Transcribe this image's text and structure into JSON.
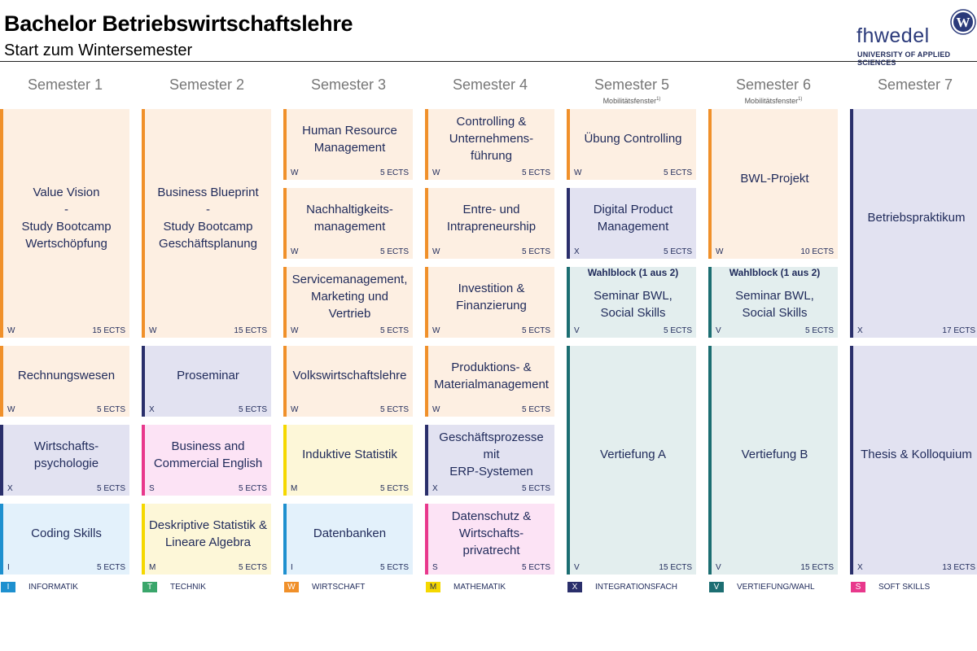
{
  "header": {
    "title": "Bachelor Betriebswirtschaftslehre",
    "subtitle": "Start zum Wintersemester",
    "logo_text": "fhwedel",
    "logo_tagline": "UNIVERSITY OF APPLIED SCIENCES",
    "logo_letter": "W"
  },
  "semesters": [
    {
      "label": "Semester 1",
      "note": ""
    },
    {
      "label": "Semester 2",
      "note": ""
    },
    {
      "label": "Semester 3",
      "note": ""
    },
    {
      "label": "Semester 4",
      "note": ""
    },
    {
      "label": "Semester 5",
      "note": "Mobilitätsfenster",
      "note_sup": "1)"
    },
    {
      "label": "Semester 6",
      "note": "Mobilitätsfenster",
      "note_sup": "1)"
    },
    {
      "label": "Semester 7",
      "note": ""
    }
  ],
  "categories": {
    "I": {
      "label": "INFORMATIK",
      "accent": "#1e90cf",
      "fill": "#e3f1fb"
    },
    "T": {
      "label": "TECHNIK",
      "accent": "#3aa66b",
      "fill": "#e4f3ea"
    },
    "W": {
      "label": "WIRTSCHAFT",
      "accent": "#f0902a",
      "fill": "#fdefe2"
    },
    "M": {
      "label": "MATHEMATIK",
      "accent": "#f5d800",
      "fill": "#fdf7d8"
    },
    "X": {
      "label": "INTEGRATIONSFACH",
      "accent": "#2a2f6b",
      "fill": "#e2e2f1"
    },
    "V": {
      "label": "VERTIEFUNG/WAHL",
      "accent": "#1c6e72",
      "fill": "#e3eeee"
    },
    "S": {
      "label": "SOFT SKILLS",
      "accent": "#e8388c",
      "fill": "#fce3f5"
    }
  },
  "legend_order": [
    "I",
    "T",
    "W",
    "M",
    "X",
    "V",
    "S"
  ],
  "modules": [
    {
      "sem": 1,
      "row": 1,
      "span": 3,
      "title": "Value Vision\n-\nStudy Bootcamp\nWertschöpfung",
      "cat": "W",
      "ects": "15 ECTS"
    },
    {
      "sem": 1,
      "row": 4,
      "span": 1,
      "title": "Rechnungswesen",
      "cat": "W",
      "ects": "5 ECTS"
    },
    {
      "sem": 1,
      "row": 5,
      "span": 1,
      "title": "Wirtschafts-\npsychologie",
      "cat": "X",
      "ects": "5 ECTS"
    },
    {
      "sem": 1,
      "row": 6,
      "span": 1,
      "title": "Coding Skills",
      "cat": "I",
      "ects": "5 ECTS"
    },
    {
      "sem": 2,
      "row": 1,
      "span": 3,
      "title": "Business Blueprint\n-\nStudy Bootcamp\nGeschäftsplanung",
      "cat": "W",
      "ects": "15 ECTS"
    },
    {
      "sem": 2,
      "row": 4,
      "span": 1,
      "title": "Proseminar",
      "cat": "X",
      "ects": "5 ECTS"
    },
    {
      "sem": 2,
      "row": 5,
      "span": 1,
      "title": "Business and\nCommercial English",
      "cat": "S",
      "ects": "5 ECTS"
    },
    {
      "sem": 2,
      "row": 6,
      "span": 1,
      "title": "Deskriptive Statistik &\nLineare Algebra",
      "cat": "M",
      "ects": "5 ECTS"
    },
    {
      "sem": 3,
      "row": 1,
      "span": 1,
      "title": "Human Resource\nManagement",
      "cat": "W",
      "ects": "5 ECTS"
    },
    {
      "sem": 3,
      "row": 2,
      "span": 1,
      "title": "Nachhaltigkeits-\nmanagement",
      "cat": "W",
      "ects": "5 ECTS"
    },
    {
      "sem": 3,
      "row": 3,
      "span": 1,
      "title": "Servicemanagement,\nMarketing und Vertrieb",
      "cat": "W",
      "ects": "5 ECTS"
    },
    {
      "sem": 3,
      "row": 4,
      "span": 1,
      "title": "Volkswirtschaftslehre",
      "cat": "W",
      "ects": "5 ECTS"
    },
    {
      "sem": 3,
      "row": 5,
      "span": 1,
      "title": "Induktive Statistik",
      "cat": "M",
      "ects": "5 ECTS"
    },
    {
      "sem": 3,
      "row": 6,
      "span": 1,
      "title": "Datenbanken",
      "cat": "I",
      "ects": "5 ECTS"
    },
    {
      "sem": 4,
      "row": 1,
      "span": 1,
      "title": "Controlling &\nUnternehmens-\nführung",
      "cat": "W",
      "ects": "5 ECTS"
    },
    {
      "sem": 4,
      "row": 2,
      "span": 1,
      "title": "Entre- und\nIntrapreneurship",
      "cat": "W",
      "ects": "5 ECTS"
    },
    {
      "sem": 4,
      "row": 3,
      "span": 1,
      "title": "Investition &\nFinanzierung",
      "cat": "W",
      "ects": "5 ECTS"
    },
    {
      "sem": 4,
      "row": 4,
      "span": 1,
      "title": "Produktions- &\nMaterialmanagement",
      "cat": "W",
      "ects": "5 ECTS"
    },
    {
      "sem": 4,
      "row": 5,
      "span": 1,
      "title": "Geschäftsprozesse mit\nERP-Systemen",
      "cat": "X",
      "ects": "5 ECTS"
    },
    {
      "sem": 4,
      "row": 6,
      "span": 1,
      "title": "Datenschutz &\nWirtschafts-\nprivatrecht",
      "cat": "S",
      "ects": "5 ECTS"
    },
    {
      "sem": 5,
      "row": 1,
      "span": 1,
      "title": "Übung Controlling",
      "cat": "W",
      "ects": "5 ECTS"
    },
    {
      "sem": 5,
      "row": 2,
      "span": 1,
      "title": "Digital Product\nManagement",
      "cat": "X",
      "ects": "5 ECTS"
    },
    {
      "sem": 5,
      "row": 3,
      "span": 1,
      "title": "Seminar BWL,\nSocial Skills",
      "cat": "V",
      "ects": "5 ECTS",
      "head": "Wahlblock (1 aus 2)"
    },
    {
      "sem": 5,
      "row": 4,
      "span": 3,
      "title": "Vertiefung A",
      "cat": "V",
      "ects": "15 ECTS"
    },
    {
      "sem": 6,
      "row": 1,
      "span": 2,
      "title": "BWL-Projekt",
      "cat": "W",
      "ects": "10 ECTS"
    },
    {
      "sem": 6,
      "row": 3,
      "span": 1,
      "title": "Seminar BWL,\nSocial Skills",
      "cat": "V",
      "ects": "5 ECTS",
      "head": "Wahlblock (1 aus 2)"
    },
    {
      "sem": 6,
      "row": 4,
      "span": 3,
      "title": "Vertiefung B",
      "cat": "V",
      "ects": "15 ECTS"
    },
    {
      "sem": 7,
      "row": 1,
      "span": 3,
      "title": "Betriebspraktikum",
      "cat": "X",
      "ects": "17 ECTS"
    },
    {
      "sem": 7,
      "row": 4,
      "span": 3,
      "title": "Thesis & Kolloquium",
      "cat": "X",
      "ects": "13 ECTS"
    }
  ]
}
